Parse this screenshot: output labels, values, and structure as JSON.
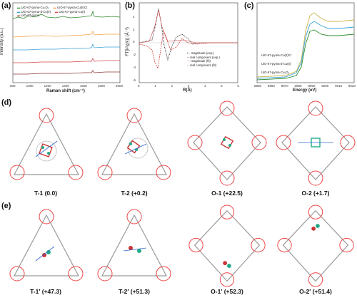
{
  "panels": {
    "a": {
      "letter": "(a)",
      "ylabel": "Intensity (a.u.)",
      "xlabel": "Raman shift (cm⁻¹)",
      "xticks": [
        "800",
        "1000",
        "1200",
        "1400",
        "1600",
        "1800",
        "2000"
      ],
      "legend": [
        {
          "label": "UiO-67-pyma-Cu₂O₂",
          "color": "#2e8b2e"
        },
        {
          "label": "UiO-67-pyma-Cu(II)Cl",
          "color": "#f0a040"
        },
        {
          "label": "UiO-67-pyma-d-Cu(II)",
          "color": "#3aa0d8"
        },
        {
          "label": "UiO-67-pyma-Cu(I)",
          "color": "#d04848"
        },
        {
          "label": "UiO-67-pyma",
          "color": "#8b3a3a"
        }
      ]
    },
    "b": {
      "letter": "(b)",
      "ylabel": "FT[k²χ(k)] (Å⁻³)",
      "xlabel": "R(Å)",
      "xticks": [
        "0",
        "1",
        "2",
        "3",
        "4",
        "5",
        "6"
      ],
      "yticks": [
        "6",
        "4",
        "2",
        "0",
        "-2",
        "-4",
        "-6"
      ],
      "legend": [
        {
          "label": "magnitude (exp.)"
        },
        {
          "label": "real component (exp.)"
        },
        {
          "label": "magnitude (fit)"
        },
        {
          "label": "real component (fit)"
        }
      ]
    },
    "c": {
      "letter": "(c)",
      "xlabel": "Energy (eV)",
      "xticks": [
        "8950",
        "8960",
        "8970",
        "8980",
        "8990",
        "9000",
        "9010",
        "9020"
      ],
      "legend": [
        {
          "label": "UiO-67-pyma-Cu(II)Cl",
          "color": "#c8b44a"
        },
        {
          "label": "UiO-67-pyma-d-Cu(II)",
          "color": "#3aa0d8"
        },
        {
          "label": "UiO-67-pyma-Cu₂O₂",
          "color": "#2e8b2e"
        }
      ]
    },
    "d": {
      "letter": "(d)",
      "structures": [
        {
          "label": "T-1 (0.0)"
        },
        {
          "label": "T-2 (+0.2)"
        },
        {
          "label": "O-1 (+22.5)"
        },
        {
          "label": "O-2 (+1.7)"
        }
      ]
    },
    "e": {
      "letter": "(e)",
      "structures": [
        {
          "label": "T-1′ (+47.3)"
        },
        {
          "label": "T-2′ (+51.3)"
        },
        {
          "label": "O-1′ (+52.3)"
        },
        {
          "label": "O-2′ (+51.4)"
        }
      ]
    }
  }
}
